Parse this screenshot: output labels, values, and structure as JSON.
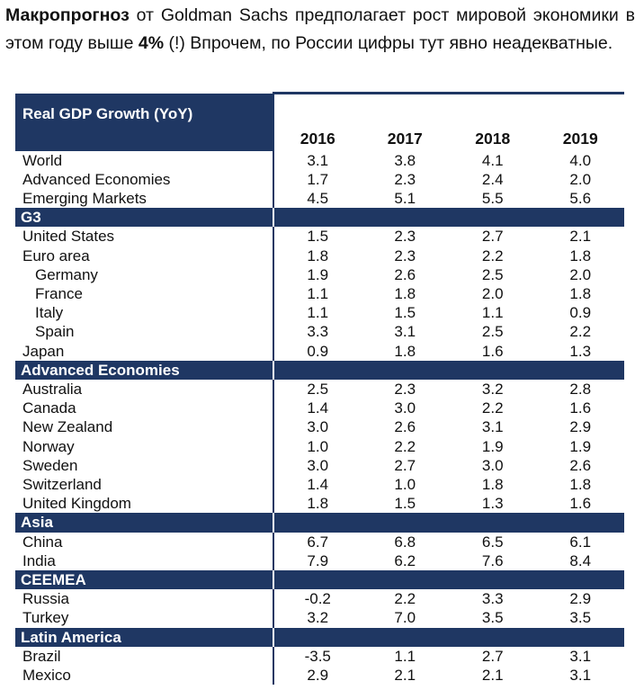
{
  "intro": {
    "part1": "Макропрогноз",
    "part2": " от Goldman Sachs предполагает рост мировой экономики в этом году выше ",
    "part3": "4%",
    "part4": " (!) Впрочем, по России цифры тут явно неадекватные."
  },
  "table": {
    "title": "Real GDP Growth (YoY)",
    "years": [
      "2016",
      "2017",
      "2018",
      "2019"
    ],
    "summary": [
      {
        "label": "World",
        "values": [
          "3.1",
          "3.8",
          "4.1",
          "4.0"
        ]
      },
      {
        "label": "Advanced Economies",
        "values": [
          "1.7",
          "2.3",
          "2.4",
          "2.0"
        ]
      },
      {
        "label": "Emerging Markets",
        "values": [
          "4.5",
          "5.1",
          "5.5",
          "5.6"
        ]
      }
    ],
    "sections": [
      {
        "label": "G3",
        "rows": [
          {
            "label": "United States",
            "indent": false,
            "values": [
              "1.5",
              "2.3",
              "2.7",
              "2.1"
            ]
          },
          {
            "label": "Euro area",
            "indent": false,
            "values": [
              "1.8",
              "2.3",
              "2.2",
              "1.8"
            ]
          },
          {
            "label": "Germany",
            "indent": true,
            "values": [
              "1.9",
              "2.6",
              "2.5",
              "2.0"
            ]
          },
          {
            "label": "France",
            "indent": true,
            "values": [
              "1.1",
              "1.8",
              "2.0",
              "1.8"
            ]
          },
          {
            "label": "Italy",
            "indent": true,
            "values": [
              "1.1",
              "1.5",
              "1.1",
              "0.9"
            ]
          },
          {
            "label": "Spain",
            "indent": true,
            "values": [
              "3.3",
              "3.1",
              "2.5",
              "2.2"
            ]
          },
          {
            "label": "Japan",
            "indent": false,
            "values": [
              "0.9",
              "1.8",
              "1.6",
              "1.3"
            ]
          }
        ]
      },
      {
        "label": "Advanced Economies",
        "rows": [
          {
            "label": "Australia",
            "indent": false,
            "values": [
              "2.5",
              "2.3",
              "3.2",
              "2.8"
            ]
          },
          {
            "label": "Canada",
            "indent": false,
            "values": [
              "1.4",
              "3.0",
              "2.2",
              "1.6"
            ]
          },
          {
            "label": "New Zealand",
            "indent": false,
            "values": [
              "3.0",
              "2.6",
              "3.1",
              "2.9"
            ]
          },
          {
            "label": "Norway",
            "indent": false,
            "values": [
              "1.0",
              "2.2",
              "1.9",
              "1.9"
            ]
          },
          {
            "label": "Sweden",
            "indent": false,
            "values": [
              "3.0",
              "2.7",
              "3.0",
              "2.6"
            ]
          },
          {
            "label": "Switzerland",
            "indent": false,
            "values": [
              "1.4",
              "1.0",
              "1.8",
              "1.8"
            ]
          },
          {
            "label": "United Kingdom",
            "indent": false,
            "values": [
              "1.8",
              "1.5",
              "1.3",
              "1.6"
            ]
          }
        ]
      },
      {
        "label": "Asia",
        "rows": [
          {
            "label": "China",
            "indent": false,
            "values": [
              "6.7",
              "6.8",
              "6.5",
              "6.1"
            ]
          },
          {
            "label": "India",
            "indent": false,
            "values": [
              "7.9",
              "6.2",
              "7.6",
              "8.4"
            ]
          }
        ]
      },
      {
        "label": "CEEMEA",
        "rows": [
          {
            "label": "Russia",
            "indent": false,
            "values": [
              "-0.2",
              "2.2",
              "3.3",
              "2.9"
            ]
          },
          {
            "label": "Turkey",
            "indent": false,
            "values": [
              "3.2",
              "7.0",
              "3.5",
              "3.5"
            ]
          }
        ]
      },
      {
        "label": "Latin America",
        "rows": [
          {
            "label": "Brazil",
            "indent": false,
            "values": [
              "-3.5",
              "1.1",
              "2.7",
              "3.1"
            ]
          },
          {
            "label": "Mexico",
            "indent": false,
            "values": [
              "2.9",
              "2.1",
              "2.1",
              "3.1"
            ]
          }
        ]
      }
    ]
  },
  "colors": {
    "header_bg": "#1f3763",
    "header_text": "#ffffff"
  }
}
